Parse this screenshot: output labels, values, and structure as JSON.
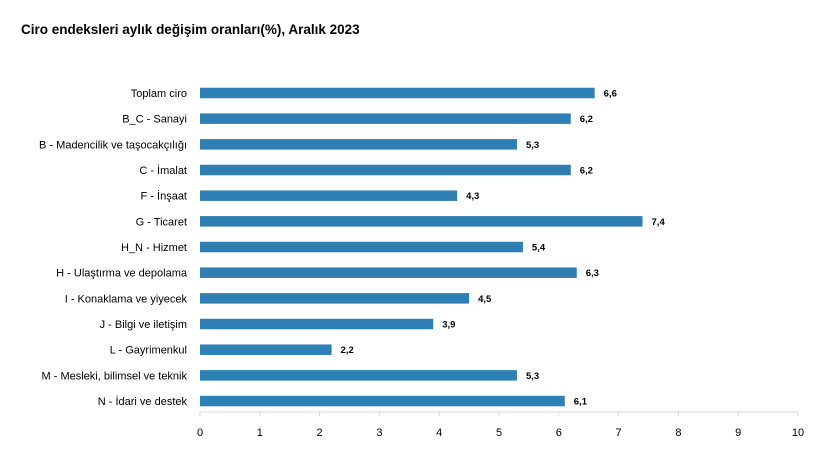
{
  "chart_data": {
    "type": "bar",
    "orientation": "horizontal",
    "title": "Ciro endeksleri aylık değişim oranları(%), Aralık 2023",
    "categories": [
      "Toplam ciro",
      "B_C - Sanayi",
      "B - Madencilik ve taşocakçılığı",
      "C - İmalat",
      "F - İnşaat",
      "G - Ticaret",
      "H_N - Hizmet",
      "H - Ulaştırma ve depolama",
      "I - Konaklama ve yiyecek",
      "J - Bilgi ve iletişim",
      "L - Gayrimenkul",
      "M - Mesleki, bilimsel ve teknik",
      "N - İdari ve destek"
    ],
    "values": [
      6.6,
      6.2,
      5.3,
      6.2,
      4.3,
      7.4,
      5.4,
      6.3,
      4.5,
      3.9,
      2.2,
      5.3,
      6.1
    ],
    "value_labels": [
      "6,6",
      "6,2",
      "5,3",
      "6,2",
      "4,3",
      "7,4",
      "5,4",
      "6,3",
      "4,5",
      "3,9",
      "2,2",
      "5,3",
      "6,1"
    ],
    "xticks": [
      "0",
      "1",
      "2",
      "3",
      "4",
      "5",
      "6",
      "7",
      "8",
      "9",
      "10"
    ],
    "xlim": [
      0,
      10
    ],
    "grid": false,
    "bar_color": "#2e7fb3"
  }
}
